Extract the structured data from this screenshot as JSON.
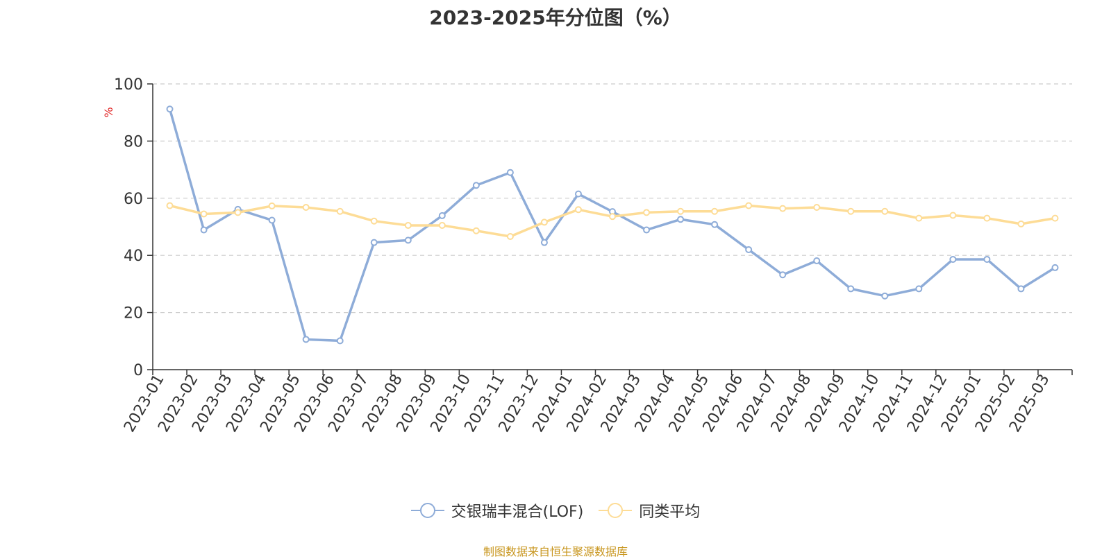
{
  "chart_data": {
    "type": "line",
    "title": "2023-2025年分位图（%）",
    "ylabel": "%",
    "ylim": [
      0,
      100
    ],
    "yticks": [
      "0",
      "20",
      "40",
      "60",
      "80",
      "100"
    ],
    "grid": true,
    "legend_position": "bottom",
    "categories": [
      "2023-01",
      "2023-02",
      "2023-03",
      "2023-04",
      "2023-05",
      "2023-06",
      "2023-07",
      "2023-08",
      "2023-09",
      "2023-10",
      "2023-11",
      "2023-12",
      "2024-01",
      "2024-02",
      "2024-03",
      "2024-04",
      "2024-05",
      "2024-06",
      "2024-07",
      "2024-08",
      "2024-09",
      "2024-10",
      "2024-11",
      "2024-12",
      "2025-01",
      "2025-02",
      "2025-03"
    ],
    "series": [
      {
        "name": "交银瑞丰混合(LOF)",
        "color": "#8eacd8",
        "values": [
          91.2,
          48.9,
          56.1,
          52.3,
          10.6,
          10.1,
          44.5,
          45.3,
          53.9,
          64.5,
          69.0,
          44.5,
          61.5,
          55.3,
          48.9,
          52.6,
          50.8,
          42.0,
          33.2,
          38.1,
          28.3,
          25.8,
          28.3,
          38.6,
          38.6,
          28.3,
          35.7
        ]
      },
      {
        "name": "同类平均",
        "color": "#fddc96",
        "values": [
          57.4,
          54.5,
          55.0,
          57.3,
          56.8,
          55.4,
          52.0,
          50.5,
          50.5,
          48.6,
          46.6,
          51.6,
          56.0,
          53.6,
          55.0,
          55.4,
          55.4,
          57.4,
          56.4,
          56.8,
          55.4,
          55.4,
          53.0,
          54.0,
          53.0,
          51.0,
          53.0
        ]
      }
    ]
  },
  "footer": {
    "source": "制图数据来自恒生聚源数据库"
  }
}
